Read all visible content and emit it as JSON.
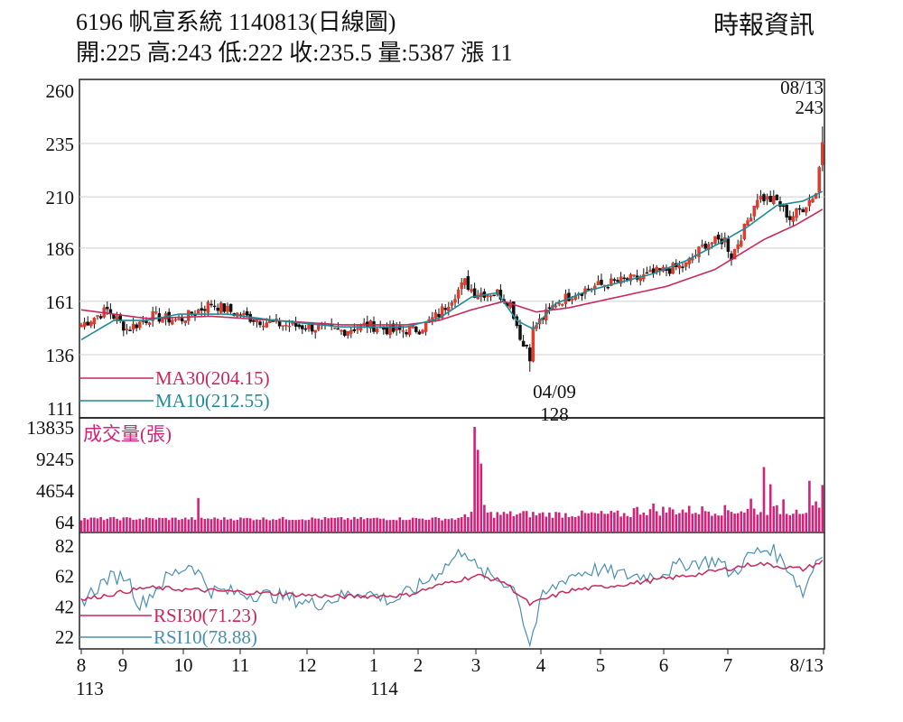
{
  "header": {
    "title": "6196  帆宣系統 1140813(日線圖)",
    "ohlc": "開:225 高:243 低:222 收:235.5 量:5387 漲 11",
    "source": "時報資訊"
  },
  "chart_data": [
    {
      "type": "candlestick",
      "panel": "price",
      "y_ticks": [
        "260",
        "235",
        "210",
        "186",
        "161",
        "136",
        "111"
      ],
      "ylim": [
        111,
        260
      ],
      "x_ticks": [
        "8",
        "9",
        "10",
        "11",
        "12",
        "1",
        "2",
        "3",
        "4",
        "5",
        "6",
        "7",
        "8/13"
      ],
      "x_subticks": {
        "8": "113",
        "1": "114"
      },
      "legend": [
        {
          "name": "MA30(204.15)",
          "color": "#c8285a"
        },
        {
          "name": "MA10(212.55)",
          "color": "#1e8c96"
        }
      ],
      "annotations": [
        {
          "date": "08/13",
          "value": "243"
        },
        {
          "date": "04/09",
          "value": "128"
        }
      ],
      "grid": true,
      "close_anchors": [
        [
          0,
          150
        ],
        [
          8,
          157
        ],
        [
          14,
          148
        ],
        [
          22,
          154
        ],
        [
          30,
          152
        ],
        [
          40,
          160
        ],
        [
          48,
          155
        ],
        [
          55,
          152
        ],
        [
          62,
          150
        ],
        [
          70,
          149
        ],
        [
          80,
          147
        ],
        [
          88,
          150
        ],
        [
          96,
          147
        ],
        [
          104,
          148
        ],
        [
          110,
          155
        ],
        [
          118,
          170
        ],
        [
          121,
          165
        ],
        [
          128,
          165
        ],
        [
          132,
          160
        ],
        [
          136,
          140
        ],
        [
          140,
          150
        ],
        [
          146,
          160
        ],
        [
          152,
          165
        ],
        [
          158,
          168
        ],
        [
          164,
          170
        ],
        [
          172,
          172
        ],
        [
          178,
          175
        ],
        [
          186,
          178
        ],
        [
          192,
          188
        ],
        [
          198,
          190
        ],
        [
          200,
          182
        ],
        [
          204,
          195
        ],
        [
          208,
          210
        ],
        [
          214,
          208
        ],
        [
          218,
          200
        ],
        [
          222,
          205
        ],
        [
          226,
          212
        ],
        [
          228,
          235.5
        ]
      ],
      "ma10_anchors": [
        [
          0,
          143
        ],
        [
          10,
          152
        ],
        [
          20,
          152
        ],
        [
          30,
          155
        ],
        [
          45,
          155
        ],
        [
          60,
          152
        ],
        [
          80,
          149
        ],
        [
          100,
          149
        ],
        [
          110,
          153
        ],
        [
          120,
          163
        ],
        [
          128,
          165
        ],
        [
          134,
          152
        ],
        [
          139,
          148
        ],
        [
          146,
          160
        ],
        [
          156,
          166
        ],
        [
          166,
          170
        ],
        [
          176,
          174
        ],
        [
          186,
          180
        ],
        [
          196,
          188
        ],
        [
          205,
          196
        ],
        [
          214,
          206
        ],
        [
          222,
          208
        ],
        [
          228,
          212.55
        ]
      ],
      "ma30_anchors": [
        [
          0,
          157
        ],
        [
          20,
          153
        ],
        [
          40,
          154
        ],
        [
          60,
          152
        ],
        [
          80,
          150
        ],
        [
          100,
          150
        ],
        [
          110,
          152
        ],
        [
          120,
          157
        ],
        [
          130,
          161
        ],
        [
          140,
          156
        ],
        [
          150,
          158
        ],
        [
          165,
          163
        ],
        [
          180,
          168
        ],
        [
          195,
          176
        ],
        [
          210,
          190
        ],
        [
          220,
          197
        ],
        [
          228,
          204.15
        ]
      ]
    },
    {
      "type": "bar",
      "panel": "volume",
      "title": "成交量(張)",
      "y_ticks": [
        "13835",
        "9245",
        "4654",
        "64"
      ],
      "ylim": [
        0,
        13835
      ],
      "color": "#d0237a",
      "spikes": [
        [
          36,
          3500
        ],
        [
          120,
          1500
        ],
        [
          121,
          13835
        ],
        [
          122,
          10500
        ],
        [
          123,
          8500
        ],
        [
          124,
          2500
        ],
        [
          136,
          1600
        ],
        [
          176,
          2700
        ],
        [
          206,
          3400
        ],
        [
          210,
          8000
        ],
        [
          212,
          5500
        ],
        [
          216,
          3300
        ],
        [
          220,
          1800
        ],
        [
          224,
          6000
        ],
        [
          226,
          3000
        ],
        [
          228,
          5387
        ]
      ]
    },
    {
      "type": "line",
      "panel": "rsi",
      "y_ticks": [
        "82",
        "62",
        "42",
        "22"
      ],
      "ylim": [
        14,
        86
      ],
      "legend": [
        {
          "name": "RSI30(71.23)",
          "color": "#c8285a"
        },
        {
          "name": "RSI10(78.88)",
          "color": "#4a8fb5"
        }
      ],
      "rsi10_anchors": [
        [
          0,
          45
        ],
        [
          8,
          60
        ],
        [
          14,
          62
        ],
        [
          18,
          42
        ],
        [
          26,
          60
        ],
        [
          34,
          70
        ],
        [
          40,
          52
        ],
        [
          52,
          50
        ],
        [
          62,
          48
        ],
        [
          72,
          43
        ],
        [
          86,
          52
        ],
        [
          96,
          45
        ],
        [
          104,
          55
        ],
        [
          112,
          68
        ],
        [
          118,
          80
        ],
        [
          122,
          65
        ],
        [
          130,
          58
        ],
        [
          134,
          52
        ],
        [
          136,
          32
        ],
        [
          138,
          17
        ],
        [
          142,
          48
        ],
        [
          150,
          62
        ],
        [
          158,
          66
        ],
        [
          168,
          62
        ],
        [
          176,
          62
        ],
        [
          186,
          70
        ],
        [
          196,
          72
        ],
        [
          200,
          62
        ],
        [
          206,
          76
        ],
        [
          212,
          80
        ],
        [
          218,
          66
        ],
        [
          222,
          50
        ],
        [
          226,
          72
        ],
        [
          228,
          78.88
        ]
      ],
      "rsi30_anchors": [
        [
          0,
          46
        ],
        [
          20,
          54
        ],
        [
          40,
          52
        ],
        [
          60,
          50
        ],
        [
          80,
          48
        ],
        [
          100,
          49
        ],
        [
          114,
          58
        ],
        [
          122,
          62
        ],
        [
          130,
          58
        ],
        [
          138,
          43
        ],
        [
          150,
          52
        ],
        [
          170,
          57
        ],
        [
          190,
          63
        ],
        [
          208,
          70
        ],
        [
          222,
          66
        ],
        [
          228,
          71.23
        ]
      ]
    }
  ]
}
